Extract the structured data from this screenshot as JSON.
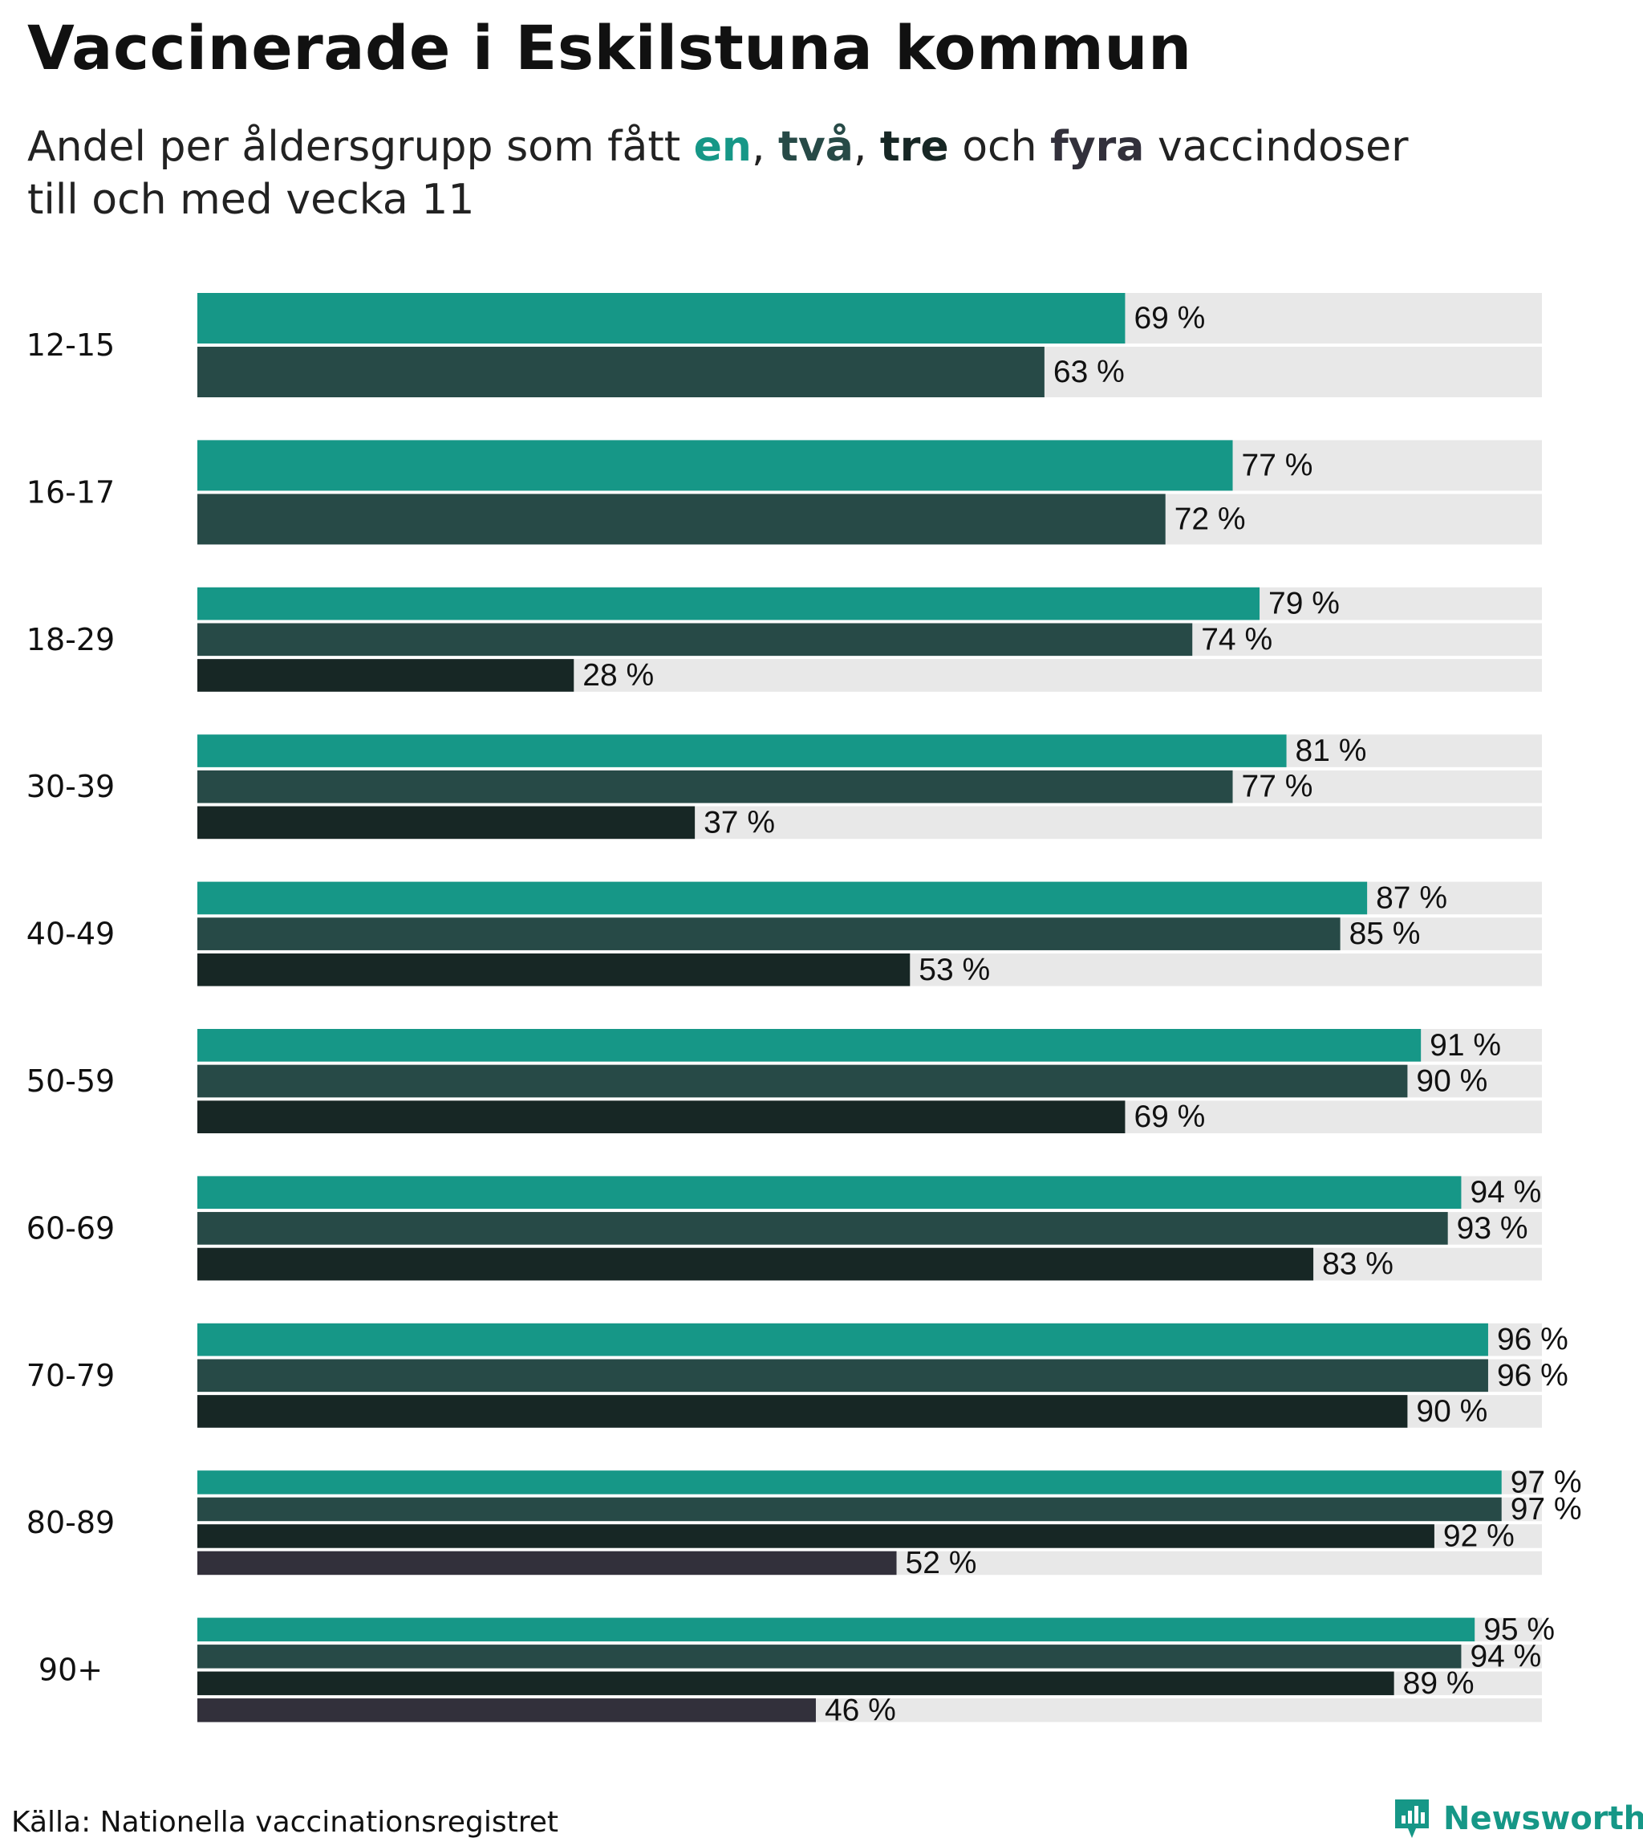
{
  "header": {
    "title": "Vaccinerade i Eskilstuna kommun",
    "subtitle_prefix": "Andel per åldersgrupp som fått",
    "dose_words": [
      "en",
      "två",
      "tre",
      "fyra"
    ],
    "sep_comma_1": ",",
    "sep_comma_2": ",",
    "sep_and": "och",
    "subtitle_suffix": "vaccindoser",
    "subtitle_line2": "till och med vecka 11"
  },
  "colors": {
    "dose1": "#169787",
    "dose2": "#274a47",
    "dose3": "#172725",
    "dose4": "#32303b",
    "track": "#e8e8e8"
  },
  "chart_data": {
    "type": "bar",
    "orientation": "horizontal",
    "title": "Vaccinerade i Eskilstuna kommun",
    "xlim": [
      0,
      100
    ],
    "unit": "%",
    "grid": false,
    "legend": "in subtitle",
    "categories": [
      "12-15",
      "16-17",
      "18-29",
      "30-39",
      "40-49",
      "50-59",
      "60-69",
      "70-79",
      "80-89",
      "90+"
    ],
    "series": [
      {
        "name": "en",
        "values": [
          69,
          77,
          79,
          81,
          87,
          91,
          94,
          96,
          97,
          95
        ]
      },
      {
        "name": "två",
        "values": [
          63,
          72,
          74,
          77,
          85,
          90,
          93,
          96,
          97,
          94
        ]
      },
      {
        "name": "tre",
        "values": [
          null,
          null,
          28,
          37,
          53,
          69,
          83,
          90,
          92,
          89
        ]
      },
      {
        "name": "fyra",
        "values": [
          null,
          null,
          null,
          null,
          null,
          null,
          null,
          null,
          52,
          46
        ]
      }
    ]
  },
  "footer": {
    "source": "Källa: Nationella vaccinationsregistret",
    "brand": "Newsworthy",
    "brand_icon": "newsworthy-logo-icon"
  }
}
